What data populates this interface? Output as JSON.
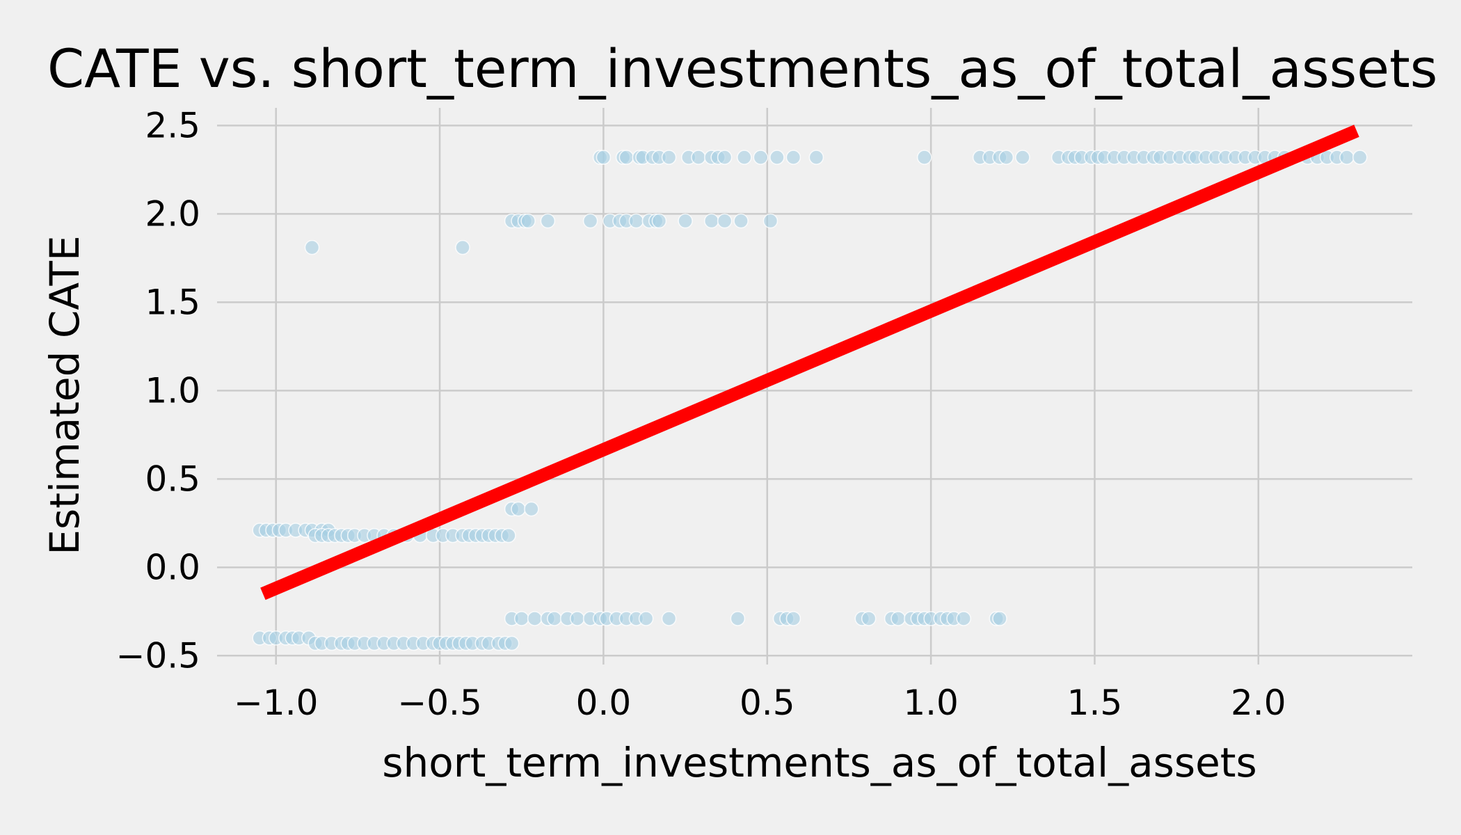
{
  "chart_data": {
    "type": "scatter",
    "title": "CATE vs. short_term_investments_as_of_total_assets",
    "xlabel": "short_term_investments_as_of_total_assets",
    "ylabel": "Estimated CATE",
    "xlim": [
      -1.18,
      2.47
    ],
    "ylim": [
      -0.55,
      2.6
    ],
    "xticks": [
      -1.0,
      -0.5,
      0.0,
      0.5,
      1.0,
      1.5,
      2.0
    ],
    "xtick_labels": [
      "−1.0",
      "−0.5",
      "0.0",
      "0.5",
      "1.0",
      "1.5",
      "2.0"
    ],
    "yticks": [
      -0.5,
      0.0,
      0.5,
      1.0,
      1.5,
      2.0,
      2.5
    ],
    "ytick_labels": [
      "−0.5",
      "0.0",
      "0.5",
      "1.0",
      "1.5",
      "2.0",
      "2.5"
    ],
    "grid": true,
    "colors": {
      "background": "#f0f0f0",
      "grid": "#cbcbcb",
      "points": "#a6cee3",
      "trend_line": "#ff0000"
    },
    "series": [
      {
        "kind": "scatter",
        "points": [
          [
            -1.05,
            0.21
          ],
          [
            -1.03,
            0.21
          ],
          [
            -1.01,
            0.21
          ],
          [
            -0.99,
            0.21
          ],
          [
            -0.97,
            0.21
          ],
          [
            -0.94,
            0.21
          ],
          [
            -0.91,
            0.21
          ],
          [
            -0.89,
            0.21
          ],
          [
            -0.86,
            0.21
          ],
          [
            -0.84,
            0.21
          ],
          [
            -0.88,
            0.18
          ],
          [
            -0.86,
            0.18
          ],
          [
            -0.84,
            0.18
          ],
          [
            -0.82,
            0.18
          ],
          [
            -0.8,
            0.18
          ],
          [
            -0.78,
            0.18
          ],
          [
            -0.76,
            0.18
          ],
          [
            -0.73,
            0.18
          ],
          [
            -0.7,
            0.18
          ],
          [
            -0.67,
            0.18
          ],
          [
            -0.64,
            0.18
          ],
          [
            -0.6,
            0.18
          ],
          [
            -0.56,
            0.18
          ],
          [
            -0.52,
            0.18
          ],
          [
            -0.49,
            0.18
          ],
          [
            -0.46,
            0.18
          ],
          [
            -0.43,
            0.18
          ],
          [
            -0.41,
            0.18
          ],
          [
            -0.39,
            0.18
          ],
          [
            -0.37,
            0.18
          ],
          [
            -0.35,
            0.18
          ],
          [
            -0.33,
            0.18
          ],
          [
            -0.31,
            0.18
          ],
          [
            -0.29,
            0.18
          ],
          [
            -1.05,
            -0.4
          ],
          [
            -1.02,
            -0.4
          ],
          [
            -1.0,
            -0.4
          ],
          [
            -0.97,
            -0.4
          ],
          [
            -0.95,
            -0.4
          ],
          [
            -0.93,
            -0.4
          ],
          [
            -0.9,
            -0.4
          ],
          [
            -0.88,
            -0.43
          ],
          [
            -0.86,
            -0.43
          ],
          [
            -0.83,
            -0.43
          ],
          [
            -0.8,
            -0.43
          ],
          [
            -0.78,
            -0.43
          ],
          [
            -0.76,
            -0.43
          ],
          [
            -0.73,
            -0.43
          ],
          [
            -0.7,
            -0.43
          ],
          [
            -0.67,
            -0.43
          ],
          [
            -0.64,
            -0.43
          ],
          [
            -0.61,
            -0.43
          ],
          [
            -0.58,
            -0.43
          ],
          [
            -0.55,
            -0.43
          ],
          [
            -0.52,
            -0.43
          ],
          [
            -0.5,
            -0.43
          ],
          [
            -0.48,
            -0.43
          ],
          [
            -0.46,
            -0.43
          ],
          [
            -0.44,
            -0.43
          ],
          [
            -0.42,
            -0.43
          ],
          [
            -0.4,
            -0.43
          ],
          [
            -0.37,
            -0.43
          ],
          [
            -0.35,
            -0.43
          ],
          [
            -0.32,
            -0.43
          ],
          [
            -0.3,
            -0.43
          ],
          [
            -0.28,
            -0.43
          ],
          [
            -0.89,
            1.81
          ],
          [
            -0.43,
            1.81
          ],
          [
            -0.28,
            1.96
          ],
          [
            -0.26,
            1.96
          ],
          [
            -0.24,
            1.96
          ],
          [
            -0.23,
            1.96
          ],
          [
            -0.17,
            1.96
          ],
          [
            -0.04,
            1.96
          ],
          [
            0.02,
            1.96
          ],
          [
            0.05,
            1.96
          ],
          [
            0.07,
            1.96
          ],
          [
            0.1,
            1.96
          ],
          [
            0.14,
            1.96
          ],
          [
            0.16,
            1.96
          ],
          [
            0.17,
            1.96
          ],
          [
            0.25,
            1.96
          ],
          [
            0.33,
            1.96
          ],
          [
            0.37,
            1.96
          ],
          [
            0.42,
            1.96
          ],
          [
            0.51,
            1.96
          ],
          [
            -0.01,
            2.32
          ],
          [
            0.0,
            2.32
          ],
          [
            0.06,
            2.32
          ],
          [
            0.07,
            2.32
          ],
          [
            0.11,
            2.32
          ],
          [
            0.12,
            2.32
          ],
          [
            0.15,
            2.32
          ],
          [
            0.17,
            2.32
          ],
          [
            0.2,
            2.32
          ],
          [
            0.26,
            2.32
          ],
          [
            0.29,
            2.32
          ],
          [
            0.33,
            2.32
          ],
          [
            0.35,
            2.32
          ],
          [
            0.37,
            2.32
          ],
          [
            0.43,
            2.32
          ],
          [
            0.48,
            2.32
          ],
          [
            0.53,
            2.32
          ],
          [
            0.58,
            2.32
          ],
          [
            0.65,
            2.32
          ],
          [
            0.98,
            2.32
          ],
          [
            1.15,
            2.32
          ],
          [
            1.18,
            2.32
          ],
          [
            1.21,
            2.32
          ],
          [
            1.23,
            2.32
          ],
          [
            1.28,
            2.32
          ],
          [
            1.39,
            2.32
          ],
          [
            1.42,
            2.32
          ],
          [
            1.44,
            2.32
          ],
          [
            1.46,
            2.32
          ],
          [
            1.49,
            2.32
          ],
          [
            1.51,
            2.32
          ],
          [
            1.53,
            2.32
          ],
          [
            1.56,
            2.32
          ],
          [
            1.59,
            2.32
          ],
          [
            1.62,
            2.32
          ],
          [
            1.65,
            2.32
          ],
          [
            1.68,
            2.32
          ],
          [
            1.7,
            2.32
          ],
          [
            1.73,
            2.32
          ],
          [
            1.76,
            2.32
          ],
          [
            1.79,
            2.32
          ],
          [
            1.81,
            2.32
          ],
          [
            1.84,
            2.32
          ],
          [
            1.87,
            2.32
          ],
          [
            1.9,
            2.32
          ],
          [
            1.93,
            2.32
          ],
          [
            1.96,
            2.32
          ],
          [
            1.99,
            2.32
          ],
          [
            2.02,
            2.32
          ],
          [
            2.05,
            2.32
          ],
          [
            2.08,
            2.32
          ],
          [
            2.11,
            2.32
          ],
          [
            2.15,
            2.32
          ],
          [
            2.18,
            2.32
          ],
          [
            2.21,
            2.32
          ],
          [
            2.24,
            2.32
          ],
          [
            2.27,
            2.32
          ],
          [
            2.31,
            2.32
          ],
          [
            -0.28,
            0.33
          ],
          [
            -0.26,
            0.33
          ],
          [
            -0.22,
            0.33
          ],
          [
            -0.28,
            -0.29
          ],
          [
            -0.25,
            -0.29
          ],
          [
            -0.21,
            -0.29
          ],
          [
            -0.17,
            -0.29
          ],
          [
            -0.15,
            -0.29
          ],
          [
            -0.11,
            -0.29
          ],
          [
            -0.08,
            -0.29
          ],
          [
            -0.04,
            -0.29
          ],
          [
            -0.01,
            -0.29
          ],
          [
            0.01,
            -0.29
          ],
          [
            0.04,
            -0.29
          ],
          [
            0.07,
            -0.29
          ],
          [
            0.1,
            -0.29
          ],
          [
            0.13,
            -0.29
          ],
          [
            0.2,
            -0.29
          ],
          [
            0.41,
            -0.29
          ],
          [
            0.54,
            -0.29
          ],
          [
            0.56,
            -0.29
          ],
          [
            0.58,
            -0.29
          ],
          [
            0.79,
            -0.29
          ],
          [
            0.81,
            -0.29
          ],
          [
            0.88,
            -0.29
          ],
          [
            0.9,
            -0.29
          ],
          [
            0.94,
            -0.29
          ],
          [
            0.96,
            -0.29
          ],
          [
            0.98,
            -0.29
          ],
          [
            1.0,
            -0.29
          ],
          [
            1.03,
            -0.29
          ],
          [
            1.05,
            -0.29
          ],
          [
            1.07,
            -0.29
          ],
          [
            1.1,
            -0.29
          ],
          [
            1.2,
            -0.29
          ],
          [
            1.21,
            -0.29
          ]
        ]
      },
      {
        "kind": "line",
        "points": [
          [
            -1.04,
            -0.15
          ],
          [
            2.3,
            2.47
          ]
        ]
      }
    ]
  }
}
